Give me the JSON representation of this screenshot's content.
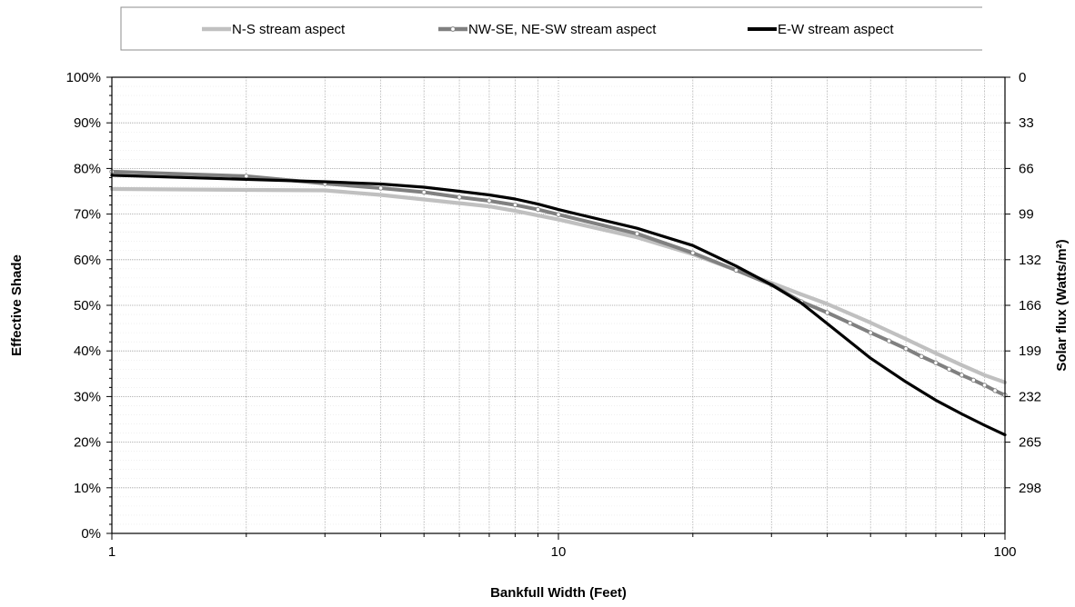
{
  "chart_data": {
    "type": "line",
    "xlabel": "Bankfull Width (Feet)",
    "ylabel": "Effective Shade",
    "y2label": "Solar flux (Watts/m²)",
    "xscale": "log",
    "xlim": [
      1,
      100
    ],
    "ylim": [
      0,
      1
    ],
    "x_tick_labels": [
      "1",
      "10",
      "100"
    ],
    "y_tick_labels": [
      "0%",
      "10%",
      "20%",
      "30%",
      "40%",
      "50%",
      "60%",
      "70%",
      "80%",
      "90%",
      "100%"
    ],
    "y2_tick_labels": [
      "0",
      "33",
      "66",
      "99",
      "132",
      "166",
      "199",
      "232",
      "265",
      "298"
    ],
    "grid": true,
    "legend_position": "top",
    "series": [
      {
        "name": "N-S stream aspect",
        "color": "#c0c0c0",
        "marker": "none",
        "x": [
          1,
          2,
          3,
          4,
          5,
          6,
          7,
          8,
          9,
          10,
          15,
          20,
          25,
          30,
          35,
          40,
          50,
          60,
          70,
          80,
          90,
          100
        ],
        "y": [
          0.755,
          0.753,
          0.752,
          0.742,
          0.732,
          0.724,
          0.717,
          0.707,
          0.697,
          0.688,
          0.649,
          0.612,
          0.577,
          0.549,
          0.524,
          0.503,
          0.462,
          0.426,
          0.395,
          0.369,
          0.347,
          0.331
        ]
      },
      {
        "name": "NW-SE, NE-SW stream aspect",
        "color": "#808080",
        "marker": "circle",
        "x": [
          1,
          2,
          3,
          4,
          5,
          6,
          7,
          8,
          9,
          10,
          15,
          20,
          25,
          30,
          35,
          40,
          45,
          50,
          55,
          60,
          65,
          70,
          75,
          80,
          85,
          90,
          95,
          100
        ],
        "y": [
          0.793,
          0.783,
          0.767,
          0.757,
          0.748,
          0.737,
          0.729,
          0.72,
          0.71,
          0.699,
          0.657,
          0.615,
          0.577,
          0.545,
          0.508,
          0.484,
          0.461,
          0.44,
          0.422,
          0.405,
          0.388,
          0.374,
          0.36,
          0.347,
          0.336,
          0.325,
          0.313,
          0.303
        ]
      },
      {
        "name": "E-W stream aspect",
        "color": "#000000",
        "marker": "none",
        "x": [
          1,
          2,
          3,
          4,
          5,
          6,
          7,
          8,
          9,
          10,
          15,
          20,
          25,
          30,
          35,
          40,
          50,
          60,
          70,
          80,
          90,
          100
        ],
        "y": [
          0.785,
          0.776,
          0.771,
          0.766,
          0.759,
          0.75,
          0.742,
          0.733,
          0.722,
          0.71,
          0.669,
          0.631,
          0.586,
          0.545,
          0.505,
          0.46,
          0.384,
          0.332,
          0.292,
          0.262,
          0.237,
          0.216
        ]
      }
    ]
  }
}
